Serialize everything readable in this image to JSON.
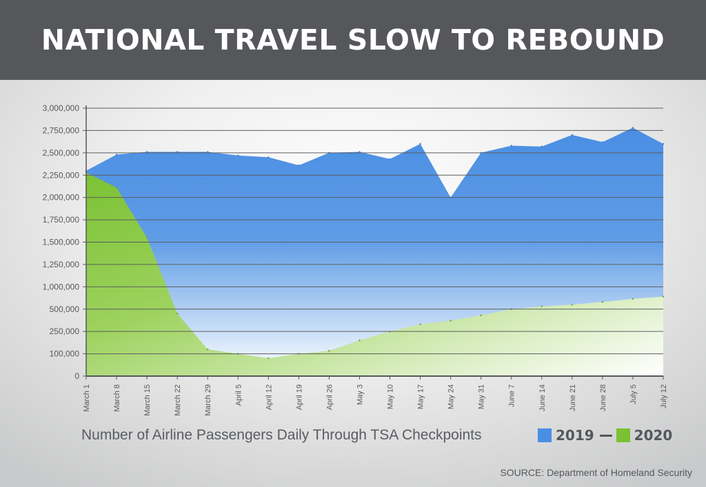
{
  "title": "NATIONAL TRAVEL SLOW TO REBOUND",
  "caption": "Number of Airline Passengers Daily Through TSA Checkpoints",
  "source": "SOURCE: Department of Homeland Security",
  "legend": {
    "series_a": "2019",
    "series_b": "2020"
  },
  "colors": {
    "series_a": "#4a8ee3",
    "series_b": "#7bc134",
    "banner": "#55575b"
  },
  "chart_data": {
    "type": "area",
    "title": "NATIONAL TRAVEL SLOW TO REBOUND",
    "xlabel": "",
    "ylabel": "",
    "grid": true,
    "legend_position": "bottom-right",
    "y_ticks": [
      "0",
      "100,000",
      "250,000",
      "500,000",
      "1,000,000",
      "1,250,000",
      "1,500,000",
      "1,750,000",
      "2,000,000",
      "2,250,000",
      "2,500,000",
      "2,750,000",
      "3,000,000"
    ],
    "categories": [
      "March 1",
      "March 8",
      "March 15",
      "March 22",
      "March 29",
      "April 5",
      "April 12",
      "April 19",
      "April 26",
      "May 3",
      "May 10",
      "May 17",
      "May 24",
      "May 31",
      "June 7",
      "June 14",
      "June 21",
      "June 28",
      "July 5",
      "July 12"
    ],
    "series": [
      {
        "name": "2019",
        "values": [
          2300000,
          2480000,
          2510000,
          2510000,
          2510000,
          2470000,
          2450000,
          2360000,
          2500000,
          2510000,
          2430000,
          2600000,
          2000000,
          2500000,
          2580000,
          2570000,
          2700000,
          2620000,
          2780000,
          2600000
        ]
      },
      {
        "name": "2020",
        "values": [
          2280000,
          2110000,
          1550000,
          450000,
          130000,
          100000,
          80000,
          100000,
          120000,
          190000,
          250000,
          330000,
          370000,
          430000,
          500000,
          560000,
          600000,
          660000,
          730000,
          780000
        ]
      }
    ]
  }
}
